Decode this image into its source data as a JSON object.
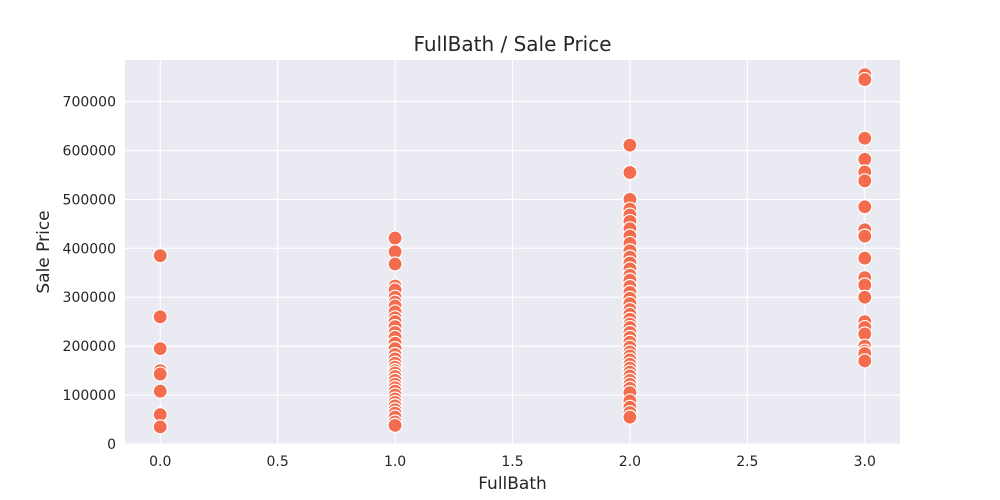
{
  "chart_data": {
    "type": "scatter",
    "title": "FullBath / Sale Price",
    "xlabel": "FullBath",
    "ylabel": "Sale Price",
    "xlim": [
      -0.15,
      3.15
    ],
    "ylim": [
      0,
      785000
    ],
    "x_ticks": [
      "0.0",
      "0.5",
      "1.0",
      "1.5",
      "2.0",
      "2.5",
      "3.0"
    ],
    "y_ticks": [
      "0",
      "100000",
      "200000",
      "300000",
      "400000",
      "500000",
      "600000",
      "700000"
    ],
    "grid": true,
    "background": "#eaeaf2",
    "point_color": "#f46c4e",
    "series": [
      {
        "points": [
          {
            "x": 0,
            "y": 385000
          },
          {
            "x": 0,
            "y": 260000
          },
          {
            "x": 0,
            "y": 195000
          },
          {
            "x": 0,
            "y": 150000
          },
          {
            "x": 0,
            "y": 143000
          },
          {
            "x": 0,
            "y": 108000
          },
          {
            "x": 0,
            "y": 60000
          },
          {
            "x": 0,
            "y": 35000
          },
          {
            "x": 1,
            "y": 421000
          },
          {
            "x": 1,
            "y": 393000
          },
          {
            "x": 1,
            "y": 368000
          },
          {
            "x": 1,
            "y": 323000
          },
          {
            "x": 1,
            "y": 315000
          },
          {
            "x": 1,
            "y": 300000
          },
          {
            "x": 1,
            "y": 290000
          },
          {
            "x": 1,
            "y": 282000
          },
          {
            "x": 1,
            "y": 270000
          },
          {
            "x": 1,
            "y": 258000
          },
          {
            "x": 1,
            "y": 250000
          },
          {
            "x": 1,
            "y": 240000
          },
          {
            "x": 1,
            "y": 228000
          },
          {
            "x": 1,
            "y": 218000
          },
          {
            "x": 1,
            "y": 206000
          },
          {
            "x": 1,
            "y": 195000
          },
          {
            "x": 1,
            "y": 183000
          },
          {
            "x": 1,
            "y": 174000
          },
          {
            "x": 1,
            "y": 165000
          },
          {
            "x": 1,
            "y": 157000
          },
          {
            "x": 1,
            "y": 150000
          },
          {
            "x": 1,
            "y": 145000
          },
          {
            "x": 1,
            "y": 138000
          },
          {
            "x": 1,
            "y": 130000
          },
          {
            "x": 1,
            "y": 122000
          },
          {
            "x": 1,
            "y": 115000
          },
          {
            "x": 1,
            "y": 108000
          },
          {
            "x": 1,
            "y": 100000
          },
          {
            "x": 1,
            "y": 92000
          },
          {
            "x": 1,
            "y": 85000
          },
          {
            "x": 1,
            "y": 78000
          },
          {
            "x": 1,
            "y": 70000
          },
          {
            "x": 1,
            "y": 63000
          },
          {
            "x": 1,
            "y": 55000
          },
          {
            "x": 1,
            "y": 45000
          },
          {
            "x": 1,
            "y": 38000
          },
          {
            "x": 2,
            "y": 611000
          },
          {
            "x": 2,
            "y": 555000
          },
          {
            "x": 2,
            "y": 500000
          },
          {
            "x": 2,
            "y": 480000
          },
          {
            "x": 2,
            "y": 468000
          },
          {
            "x": 2,
            "y": 455000
          },
          {
            "x": 2,
            "y": 440000
          },
          {
            "x": 2,
            "y": 425000
          },
          {
            "x": 2,
            "y": 410000
          },
          {
            "x": 2,
            "y": 395000
          },
          {
            "x": 2,
            "y": 382000
          },
          {
            "x": 2,
            "y": 370000
          },
          {
            "x": 2,
            "y": 358000
          },
          {
            "x": 2,
            "y": 345000
          },
          {
            "x": 2,
            "y": 335000
          },
          {
            "x": 2,
            "y": 322000
          },
          {
            "x": 2,
            "y": 310000
          },
          {
            "x": 2,
            "y": 298000
          },
          {
            "x": 2,
            "y": 287000
          },
          {
            "x": 2,
            "y": 275000
          },
          {
            "x": 2,
            "y": 265000
          },
          {
            "x": 2,
            "y": 255000
          },
          {
            "x": 2,
            "y": 245000
          },
          {
            "x": 2,
            "y": 238000
          },
          {
            "x": 2,
            "y": 228000
          },
          {
            "x": 2,
            "y": 218000
          },
          {
            "x": 2,
            "y": 208000
          },
          {
            "x": 2,
            "y": 198000
          },
          {
            "x": 2,
            "y": 188000
          },
          {
            "x": 2,
            "y": 180000
          },
          {
            "x": 2,
            "y": 172000
          },
          {
            "x": 2,
            "y": 163000
          },
          {
            "x": 2,
            "y": 155000
          },
          {
            "x": 2,
            "y": 147000
          },
          {
            "x": 2,
            "y": 139000
          },
          {
            "x": 2,
            "y": 130000
          },
          {
            "x": 2,
            "y": 122000
          },
          {
            "x": 2,
            "y": 114000
          },
          {
            "x": 2,
            "y": 105000
          },
          {
            "x": 2,
            "y": 88000
          },
          {
            "x": 2,
            "y": 75000
          },
          {
            "x": 2,
            "y": 64000
          },
          {
            "x": 2,
            "y": 55000
          },
          {
            "x": 3,
            "y": 755000
          },
          {
            "x": 3,
            "y": 745000
          },
          {
            "x": 3,
            "y": 625000
          },
          {
            "x": 3,
            "y": 582000
          },
          {
            "x": 3,
            "y": 556000
          },
          {
            "x": 3,
            "y": 538000
          },
          {
            "x": 3,
            "y": 485000
          },
          {
            "x": 3,
            "y": 438000
          },
          {
            "x": 3,
            "y": 425000
          },
          {
            "x": 3,
            "y": 380000
          },
          {
            "x": 3,
            "y": 340000
          },
          {
            "x": 3,
            "y": 325000
          },
          {
            "x": 3,
            "y": 300000
          },
          {
            "x": 3,
            "y": 250000
          },
          {
            "x": 3,
            "y": 238000
          },
          {
            "x": 3,
            "y": 225000
          },
          {
            "x": 3,
            "y": 200000
          },
          {
            "x": 3,
            "y": 190000
          },
          {
            "x": 3,
            "y": 185000
          },
          {
            "x": 3,
            "y": 170000
          }
        ]
      }
    ]
  }
}
